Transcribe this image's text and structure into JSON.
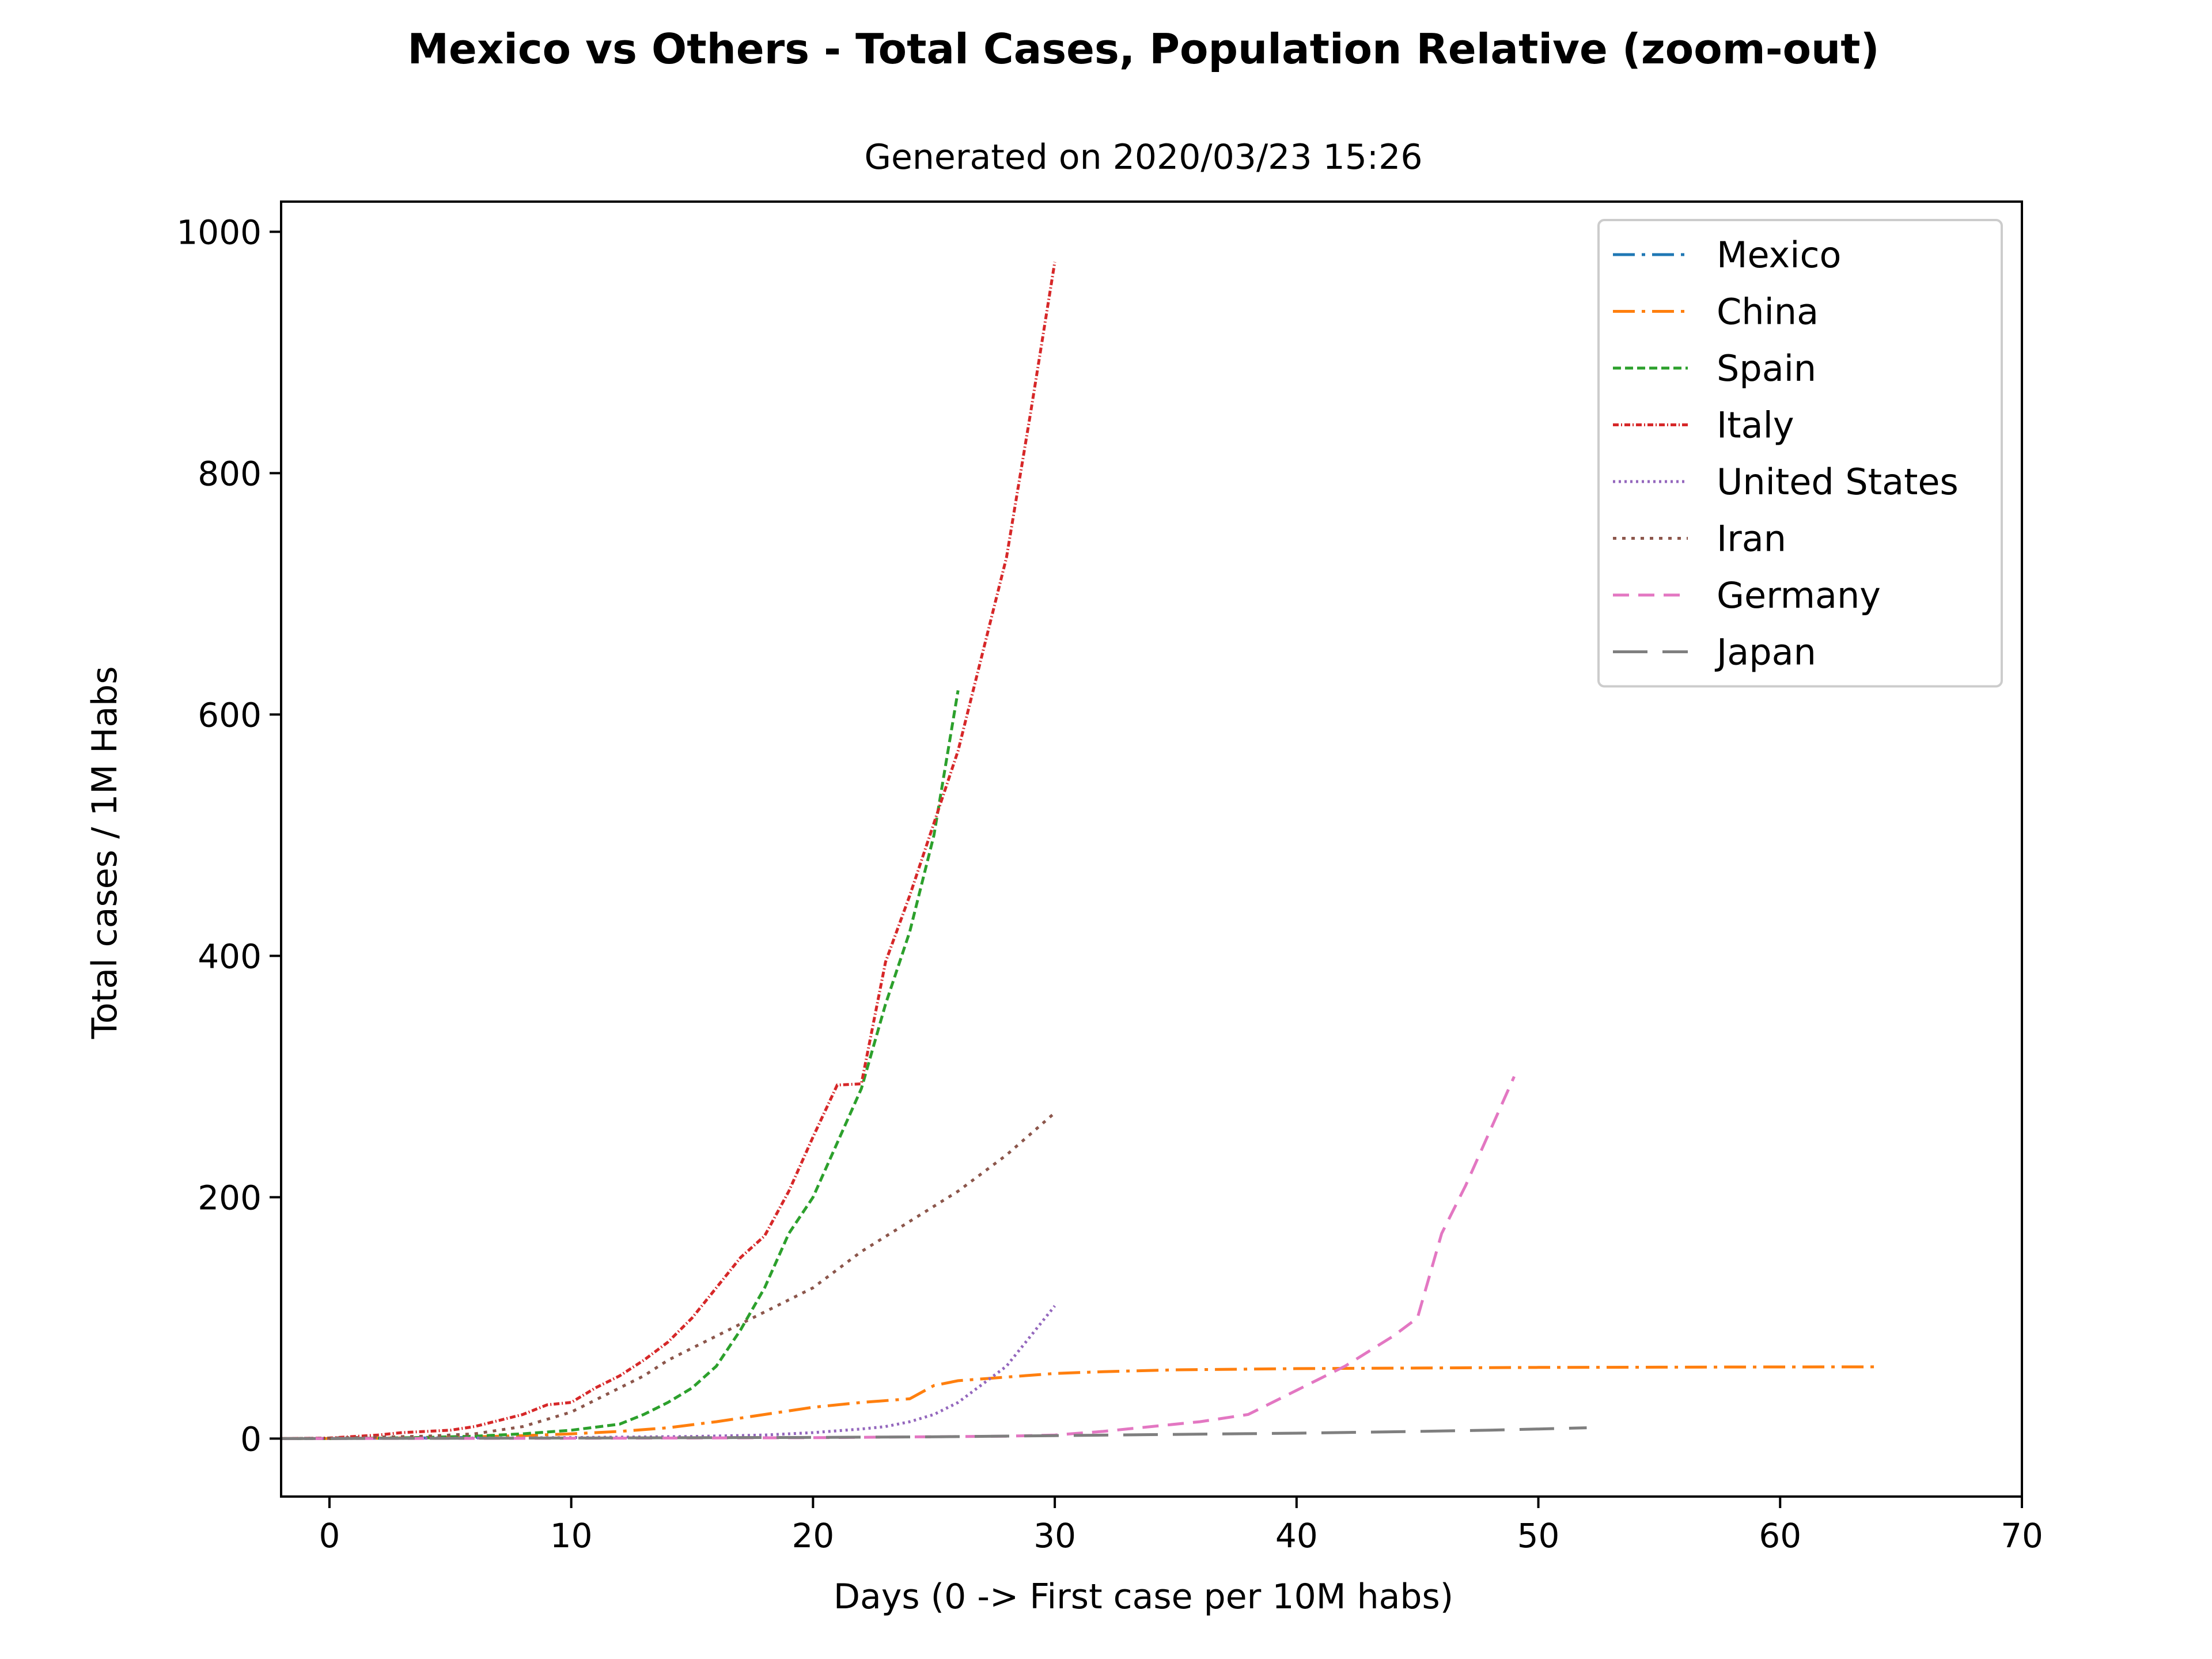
{
  "chart_data": {
    "type": "line",
    "title": "Mexico vs Others - Total Cases, Population Relative (zoom-out)",
    "subtitle": "Generated on 2020/03/23 15:26",
    "xlabel": "Days (0 -> First case per 10M habs)",
    "ylabel": "Total cases / 1M Habs",
    "xlim": [
      -2,
      70
    ],
    "ylim": [
      -48,
      1025
    ],
    "xticks": [
      0,
      10,
      20,
      30,
      40,
      50,
      60,
      70
    ],
    "yticks": [
      0,
      200,
      400,
      600,
      800,
      1000
    ],
    "grid": false,
    "legend_position": "top-right",
    "series": [
      {
        "name": "Mexico",
        "color": "#1f77b4",
        "dash": "dashdot",
        "points": [
          [
            0,
            0.1
          ],
          [
            1,
            0.2
          ],
          [
            2,
            0.3
          ],
          [
            3,
            0.4
          ],
          [
            4,
            0.6
          ],
          [
            5,
            0.8
          ],
          [
            6,
            1.0
          ],
          [
            7,
            1.3
          ]
        ]
      },
      {
        "name": "China",
        "color": "#ff7f0e",
        "dash": "dashdot",
        "points": [
          [
            -2,
            0
          ],
          [
            0,
            0.1
          ],
          [
            2,
            0.4
          ],
          [
            4,
            0.8
          ],
          [
            6,
            1.5
          ],
          [
            8,
            2.5
          ],
          [
            10,
            4
          ],
          [
            12,
            6
          ],
          [
            14,
            9
          ],
          [
            16,
            14
          ],
          [
            18,
            20
          ],
          [
            20,
            26
          ],
          [
            22,
            30
          ],
          [
            24,
            33
          ],
          [
            25,
            44
          ],
          [
            26,
            48
          ],
          [
            28,
            51
          ],
          [
            30,
            54
          ],
          [
            32,
            55.5
          ],
          [
            35,
            57
          ],
          [
            40,
            58
          ],
          [
            45,
            58.5
          ],
          [
            50,
            59
          ],
          [
            55,
            59.2
          ],
          [
            60,
            59.4
          ],
          [
            64,
            59.5
          ]
        ]
      },
      {
        "name": "Spain",
        "color": "#2ca02c",
        "dash": "dashed-fine",
        "points": [
          [
            -2,
            0
          ],
          [
            0,
            0.1
          ],
          [
            2,
            0.4
          ],
          [
            4,
            1
          ],
          [
            6,
            2
          ],
          [
            8,
            4
          ],
          [
            10,
            7
          ],
          [
            12,
            12
          ],
          [
            13,
            20
          ],
          [
            14,
            30
          ],
          [
            15,
            42
          ],
          [
            16,
            60
          ],
          [
            17,
            90
          ],
          [
            18,
            125
          ],
          [
            19,
            170
          ],
          [
            20,
            200
          ],
          [
            21,
            245
          ],
          [
            22,
            290
          ],
          [
            23,
            360
          ],
          [
            24,
            420
          ],
          [
            25,
            500
          ],
          [
            26,
            620
          ]
        ]
      },
      {
        "name": "Italy",
        "color": "#d62728",
        "dash": "dotted-dash",
        "points": [
          [
            -2,
            0
          ],
          [
            0,
            0.5
          ],
          [
            2,
            3
          ],
          [
            3,
            5
          ],
          [
            4,
            6
          ],
          [
            5,
            7
          ],
          [
            6,
            10
          ],
          [
            7,
            15
          ],
          [
            8,
            20
          ],
          [
            9,
            28
          ],
          [
            10,
            30
          ],
          [
            11,
            42
          ],
          [
            12,
            52
          ],
          [
            13,
            65
          ],
          [
            14,
            80
          ],
          [
            15,
            100
          ],
          [
            16,
            125
          ],
          [
            17,
            150
          ],
          [
            18,
            168
          ],
          [
            19,
            205
          ],
          [
            20,
            250
          ],
          [
            21,
            293
          ],
          [
            22,
            294
          ],
          [
            23,
            395
          ],
          [
            24,
            450
          ],
          [
            25,
            510
          ],
          [
            26,
            570
          ],
          [
            27,
            650
          ],
          [
            28,
            730
          ],
          [
            29,
            850
          ],
          [
            30,
            975
          ]
        ]
      },
      {
        "name": "United States",
        "color": "#9467bd",
        "dash": "dotted",
        "points": [
          [
            -2,
            0
          ],
          [
            0,
            0.1
          ],
          [
            5,
            0.4
          ],
          [
            10,
            0.9
          ],
          [
            15,
            1.8
          ],
          [
            18,
            3
          ],
          [
            20,
            5
          ],
          [
            22,
            8
          ],
          [
            23,
            10
          ],
          [
            24,
            14
          ],
          [
            25,
            20
          ],
          [
            26,
            30
          ],
          [
            27,
            45
          ],
          [
            28,
            60
          ],
          [
            29,
            85
          ],
          [
            30,
            110
          ]
        ]
      },
      {
        "name": "Iran",
        "color": "#8c564b",
        "dash": "dotted-wide",
        "points": [
          [
            -2,
            0
          ],
          [
            0,
            0.5
          ],
          [
            4,
            2
          ],
          [
            6,
            4
          ],
          [
            8,
            10
          ],
          [
            9,
            16
          ],
          [
            10,
            22
          ],
          [
            11,
            32
          ],
          [
            12,
            42
          ],
          [
            13,
            52
          ],
          [
            14,
            65
          ],
          [
            15,
            75
          ],
          [
            16,
            85
          ],
          [
            18,
            105
          ],
          [
            20,
            125
          ],
          [
            22,
            155
          ],
          [
            24,
            180
          ],
          [
            26,
            205
          ],
          [
            28,
            235
          ],
          [
            30,
            270
          ]
        ]
      },
      {
        "name": "Germany",
        "color": "#e377c2",
        "dash": "dashed",
        "points": [
          [
            -2,
            0
          ],
          [
            0,
            0.1
          ],
          [
            10,
            0.3
          ],
          [
            20,
            0.8
          ],
          [
            28,
            2
          ],
          [
            30,
            3
          ],
          [
            32,
            6
          ],
          [
            34,
            10
          ],
          [
            36,
            14
          ],
          [
            38,
            20
          ],
          [
            40,
            40
          ],
          [
            42,
            60
          ],
          [
            44,
            85
          ],
          [
            45,
            100
          ],
          [
            46,
            170
          ],
          [
            47,
            210
          ],
          [
            48,
            255
          ],
          [
            49,
            300
          ]
        ]
      },
      {
        "name": "Japan",
        "color": "#7f7f7f",
        "dash": "long-dash",
        "points": [
          [
            -2,
            0
          ],
          [
            0,
            0.1
          ],
          [
            10,
            0.5
          ],
          [
            20,
            1
          ],
          [
            25,
            1.5
          ],
          [
            30,
            2.5
          ],
          [
            35,
            3.5
          ],
          [
            40,
            4.5
          ],
          [
            45,
            6
          ],
          [
            48,
            7
          ],
          [
            50,
            8
          ],
          [
            52,
            9
          ]
        ]
      }
    ]
  }
}
